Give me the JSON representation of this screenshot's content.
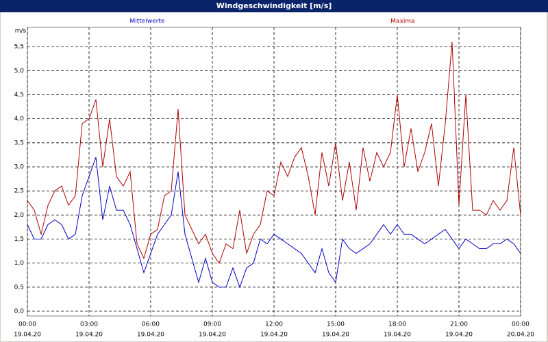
{
  "chart_data": {
    "type": "line",
    "title": "Windgeschwindigkeit [m/s]",
    "y_label": "m/s",
    "x": [
      0,
      20,
      40,
      60,
      80,
      100,
      120,
      140,
      160,
      180,
      200,
      220,
      240,
      260,
      280,
      300,
      320,
      340,
      360,
      380,
      400,
      420,
      440,
      460,
      480,
      500,
      520,
      540,
      560,
      580,
      600,
      620,
      640,
      660,
      680,
      700,
      720,
      740,
      760,
      780,
      800,
      820,
      840,
      860,
      880,
      900,
      920,
      940,
      960,
      980,
      1000,
      1020,
      1040,
      1060,
      1080,
      1100,
      1120,
      1140,
      1160,
      1180,
      1200,
      1220,
      1240,
      1260,
      1280,
      1300,
      1320,
      1340,
      1360,
      1380,
      1400,
      1420,
      1440
    ],
    "series": [
      {
        "name": "Mittelwerte",
        "color": "#0000c8",
        "values": [
          1.8,
          1.5,
          1.5,
          1.8,
          1.9,
          1.8,
          1.5,
          1.6,
          2.4,
          2.8,
          3.2,
          1.9,
          2.6,
          2.1,
          2.1,
          1.8,
          1.3,
          0.8,
          1.2,
          1.6,
          1.8,
          2.0,
          2.9,
          1.6,
          1.1,
          0.6,
          1.1,
          0.6,
          0.5,
          0.5,
          0.9,
          0.5,
          0.9,
          1.0,
          1.5,
          1.4,
          1.6,
          1.5,
          1.4,
          1.3,
          1.2,
          1.0,
          0.8,
          1.3,
          0.8,
          0.6,
          1.5,
          1.3,
          1.2,
          1.3,
          1.4,
          1.6,
          1.8,
          1.6,
          1.8,
          1.6,
          1.6,
          1.5,
          1.4,
          1.5,
          1.6,
          1.7,
          1.5,
          1.3,
          1.5,
          1.4,
          1.3,
          1.3,
          1.4,
          1.4,
          1.5,
          1.4,
          1.2
        ]
      },
      {
        "name": "Maxima",
        "color": "#b00000",
        "values": [
          2.3,
          2.1,
          1.6,
          2.2,
          2.5,
          2.6,
          2.2,
          2.4,
          3.9,
          4.0,
          4.4,
          3.0,
          4.0,
          2.8,
          2.6,
          2.9,
          1.4,
          1.1,
          1.6,
          1.7,
          2.4,
          2.5,
          4.2,
          2.0,
          1.7,
          1.4,
          1.6,
          1.2,
          1.0,
          1.4,
          1.3,
          2.1,
          1.2,
          1.6,
          1.8,
          2.5,
          2.4,
          3.1,
          2.8,
          3.2,
          3.4,
          2.8,
          2.0,
          3.3,
          2.6,
          3.5,
          2.3,
          3.1,
          2.1,
          3.4,
          2.7,
          3.3,
          3.0,
          3.3,
          4.5,
          3.0,
          3.8,
          2.9,
          3.3,
          3.9,
          2.6,
          3.9,
          5.6,
          2.2,
          4.5,
          2.1,
          2.1,
          2.0,
          2.3,
          2.1,
          2.3,
          3.4,
          2.0
        ]
      }
    ],
    "xlim": [
      0,
      1440
    ],
    "xticks": [
      {
        "value": 0,
        "label": [
          "00:00",
          "19.04.20"
        ]
      },
      {
        "value": 180,
        "label": [
          "03:00",
          "19.04.20"
        ]
      },
      {
        "value": 360,
        "label": [
          "06:00",
          "19.04.20"
        ]
      },
      {
        "value": 540,
        "label": [
          "09:00",
          "19.04.20"
        ]
      },
      {
        "value": 720,
        "label": [
          "12:00",
          "19.04.20"
        ]
      },
      {
        "value": 900,
        "label": [
          "15:00",
          "19.04.20"
        ]
      },
      {
        "value": 1080,
        "label": [
          "18:00",
          "19.04.20"
        ]
      },
      {
        "value": 1260,
        "label": [
          "21:00",
          "19.04.20"
        ]
      },
      {
        "value": 1440,
        "label": [
          "00:00",
          "20.04.20"
        ]
      }
    ],
    "ylim": [
      -0.1,
      5.9
    ],
    "yticks": [
      {
        "value": 0,
        "label": "0,0"
      },
      {
        "value": 0.5,
        "label": "0,5"
      },
      {
        "value": 1,
        "label": "1,0"
      },
      {
        "value": 1.5,
        "label": "1,5"
      },
      {
        "value": 2,
        "label": "2,0"
      },
      {
        "value": 2.5,
        "label": "2,5"
      },
      {
        "value": 3,
        "label": "3,0"
      },
      {
        "value": 3.5,
        "label": "3,5"
      },
      {
        "value": 4,
        "label": "4,0"
      },
      {
        "value": 4.5,
        "label": "4,5"
      },
      {
        "value": 5,
        "label": "5,0"
      },
      {
        "value": 5.5,
        "label": "5,5"
      }
    ],
    "grid": true
  }
}
